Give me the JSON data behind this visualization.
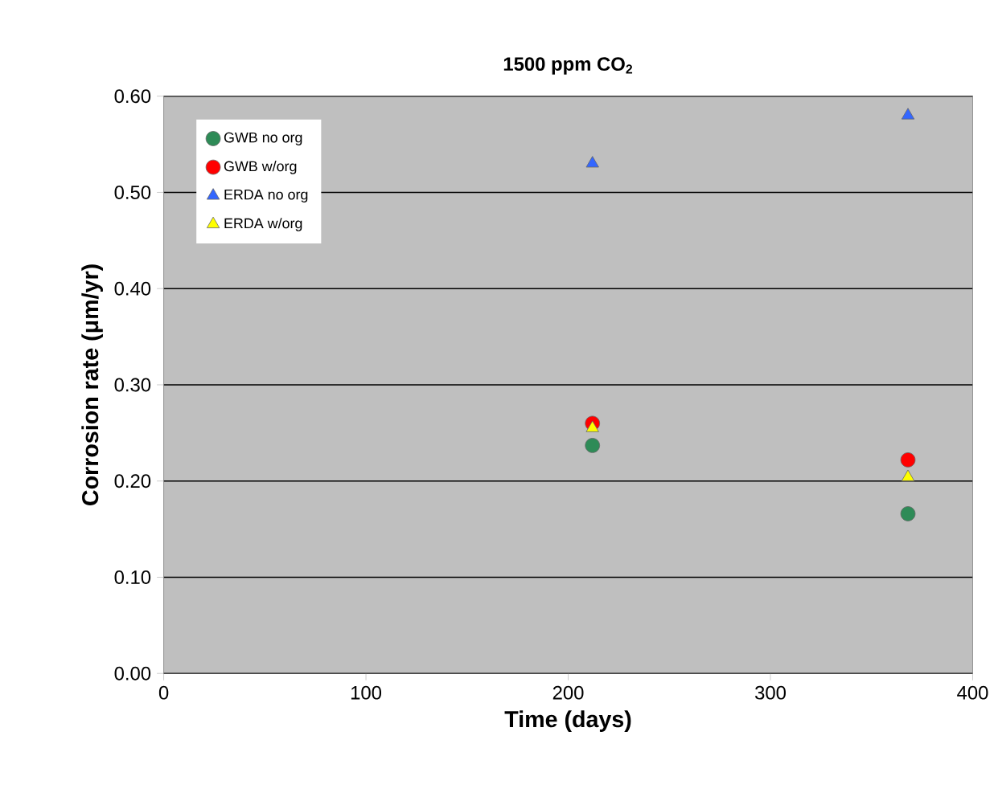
{
  "chart_data": {
    "type": "scatter",
    "title": "1500 ppm CO$_{2}$",
    "xlabel": "Time (days)",
    "ylabel": "Corrosion rate (μm/yr)",
    "xlim": [
      0,
      400
    ],
    "xticks": [
      0,
      100,
      200,
      300,
      400
    ],
    "ylim": [
      0,
      0.6
    ],
    "yticks": [
      {
        "value": 0,
        "label": "0.00"
      },
      {
        "value": 0.1,
        "label": "0.10"
      },
      {
        "value": 0.2,
        "label": "0.20"
      },
      {
        "value": 0.3,
        "label": "0.30"
      },
      {
        "value": 0.4,
        "label": "0.40"
      },
      {
        "value": 0.5,
        "label": "0.50"
      },
      {
        "value": 0.6,
        "label": "0.60"
      }
    ],
    "grid": "y",
    "legend": "top left",
    "x": [
      212,
      368
    ],
    "series": [
      {
        "name": "GWB no org",
        "color": "#2e8b57",
        "marker": "circle",
        "values": [
          0.237,
          0.166
        ]
      },
      {
        "name": "GWB w/org",
        "color": "#ff0000",
        "marker": "circle",
        "values": [
          0.26,
          0.222
        ]
      },
      {
        "name": "ERDA no org",
        "color": "#3366ff",
        "marker": "triangle",
        "values": [
          0.53,
          0.58
        ]
      },
      {
        "name": "ERDA w/org",
        "color": "#ffff00",
        "marker": "triangle",
        "values": [
          0.255,
          0.204
        ]
      }
    ]
  }
}
